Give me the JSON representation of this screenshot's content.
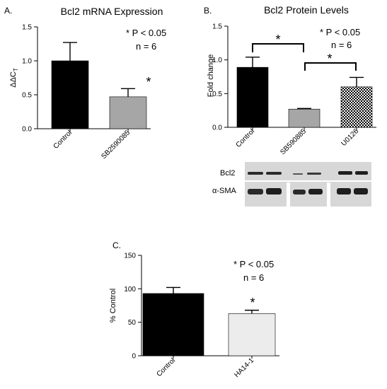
{
  "colors": {
    "black": "#000000",
    "gray": "#a6a6a6",
    "light_gray": "#ececec",
    "white": "#ffffff",
    "blot_bg": "#d7d7d7",
    "band": "#2a2a2a"
  },
  "blot": {
    "band_labels": [
      "Bcl2",
      "α-SMA"
    ]
  },
  "chart_data": [
    {
      "panel": "A.",
      "type": "bar",
      "title": "Bcl2 mRNA Expression",
      "ylabel_main": "ΔΔC",
      "ylabel_sub": "T",
      "xlabel": "",
      "ylim": [
        0,
        1.5
      ],
      "yticks": [
        "0.0",
        "0.5",
        "1.0",
        "1.5"
      ],
      "categories": [
        "Control",
        "SB2590085"
      ],
      "values": [
        1.0,
        0.47
      ],
      "errors": [
        0.27,
        0.12
      ],
      "bar_fills": [
        "black",
        "gray"
      ],
      "significance_stars": [
        "*"
      ],
      "annotation": [
        "* P < 0.05",
        "n = 6"
      ]
    },
    {
      "panel": "B.",
      "type": "bar",
      "title": "Bcl2 Protein Levels",
      "ylabel": "Fold change",
      "xlabel": "",
      "ylim": [
        0,
        1.5
      ],
      "yticks": [
        "0.0",
        "0.5",
        "1.0",
        "1.5"
      ],
      "categories": [
        "Control",
        "SB590885",
        "U0126"
      ],
      "values": [
        0.89,
        0.27,
        0.6
      ],
      "errors": [
        0.15,
        0.01,
        0.14
      ],
      "bar_fills": [
        "black",
        "gray",
        "checker"
      ],
      "significance_stars": [
        "*",
        "*"
      ],
      "annotation": [
        "* P < 0.05",
        "n = 6"
      ]
    },
    {
      "panel": "C.",
      "type": "bar",
      "title": "",
      "ylabel": "% Control",
      "xlabel": "",
      "ylim": [
        0,
        150
      ],
      "yticks": [
        "0",
        "50",
        "100",
        "150"
      ],
      "categories": [
        "Control",
        "HA14-1"
      ],
      "values": [
        93,
        63
      ],
      "errors": [
        9,
        5
      ],
      "bar_fills": [
        "black",
        "light_gray"
      ],
      "significance_stars": [
        "*"
      ],
      "annotation": [
        "* P < 0.05",
        "n = 6"
      ]
    }
  ]
}
